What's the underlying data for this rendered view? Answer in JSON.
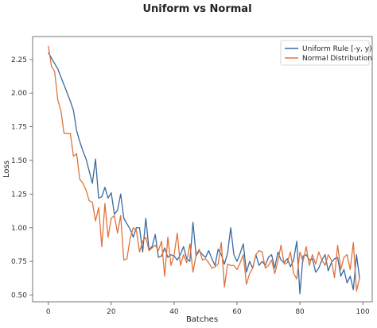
{
  "chart_data": {
    "type": "line",
    "title": "Uniform vs Normal",
    "xlabel": "Batches",
    "ylabel": "Loss",
    "xlim": [
      -5,
      103
    ],
    "ylim": [
      0.45,
      2.42
    ],
    "x_ticks": [
      0,
      20,
      40,
      60,
      80,
      100
    ],
    "y_ticks": [
      0.5,
      0.75,
      1.0,
      1.25,
      1.5,
      1.75,
      2.0,
      2.25
    ],
    "y_tick_labels": [
      "0.50",
      "0.75",
      "1.00",
      "1.25",
      "1.50",
      "1.75",
      "2.00",
      "2.25"
    ],
    "grid": false,
    "legend_position": "top-right",
    "series": [
      {
        "name": "Uniform Rule [-y, y)",
        "color": "#3b6aa0",
        "values": [
          2.3,
          2.26,
          2.22,
          2.18,
          2.12,
          2.06,
          2.0,
          1.94,
          1.87,
          1.72,
          1.64,
          1.57,
          1.51,
          1.42,
          1.33,
          1.51,
          1.22,
          1.23,
          1.3,
          1.22,
          1.26,
          1.1,
          1.13,
          1.25,
          1.07,
          1.03,
          0.99,
          0.93,
          1.0,
          1.0,
          0.82,
          1.07,
          0.84,
          0.86,
          0.95,
          0.78,
          0.79,
          0.85,
          0.78,
          0.8,
          0.79,
          0.76,
          0.8,
          0.86,
          0.77,
          0.75,
          1.04,
          0.79,
          0.83,
          0.8,
          0.78,
          0.83,
          0.77,
          0.72,
          0.84,
          0.8,
          0.73,
          0.81,
          1.0,
          0.8,
          0.75,
          0.81,
          0.88,
          0.67,
          0.75,
          0.7,
          0.8,
          0.72,
          0.75,
          0.72,
          0.78,
          0.8,
          0.7,
          0.82,
          0.76,
          0.74,
          0.77,
          0.71,
          0.76,
          0.9,
          0.51,
          0.79,
          0.8,
          0.76,
          0.77,
          0.67,
          0.7,
          0.76,
          0.8,
          0.68,
          0.74,
          0.77,
          0.78,
          0.64,
          0.69,
          0.59,
          0.64,
          0.54,
          0.8,
          0.62
        ]
      },
      {
        "name": "Normal Distribution",
        "color": "#e0733a",
        "values": [
          2.35,
          2.2,
          2.16,
          1.95,
          1.87,
          1.7,
          1.7,
          1.7,
          1.53,
          1.55,
          1.36,
          1.33,
          1.28,
          1.2,
          1.19,
          1.05,
          1.15,
          0.86,
          1.18,
          0.93,
          1.07,
          1.09,
          0.96,
          1.09,
          0.76,
          0.77,
          0.92,
          1.0,
          0.98,
          0.82,
          0.9,
          0.93,
          0.83,
          0.85,
          0.87,
          0.83,
          0.9,
          0.64,
          0.93,
          0.72,
          0.8,
          0.96,
          0.72,
          0.8,
          0.74,
          0.88,
          0.67,
          0.8,
          0.84,
          0.76,
          0.77,
          0.74,
          0.7,
          0.71,
          0.73,
          0.89,
          0.56,
          0.73,
          0.72,
          0.72,
          0.69,
          0.74,
          0.8,
          0.58,
          0.66,
          0.7,
          0.8,
          0.83,
          0.82,
          0.7,
          0.72,
          0.76,
          0.66,
          0.75,
          0.87,
          0.73,
          0.74,
          0.82,
          0.66,
          0.62,
          0.82,
          0.75,
          0.86,
          0.72,
          0.8,
          0.73,
          0.82,
          0.76,
          0.72,
          0.8,
          0.76,
          0.63,
          0.87,
          0.69,
          0.78,
          0.8,
          0.69,
          0.89,
          0.53,
          0.63
        ]
      }
    ]
  }
}
